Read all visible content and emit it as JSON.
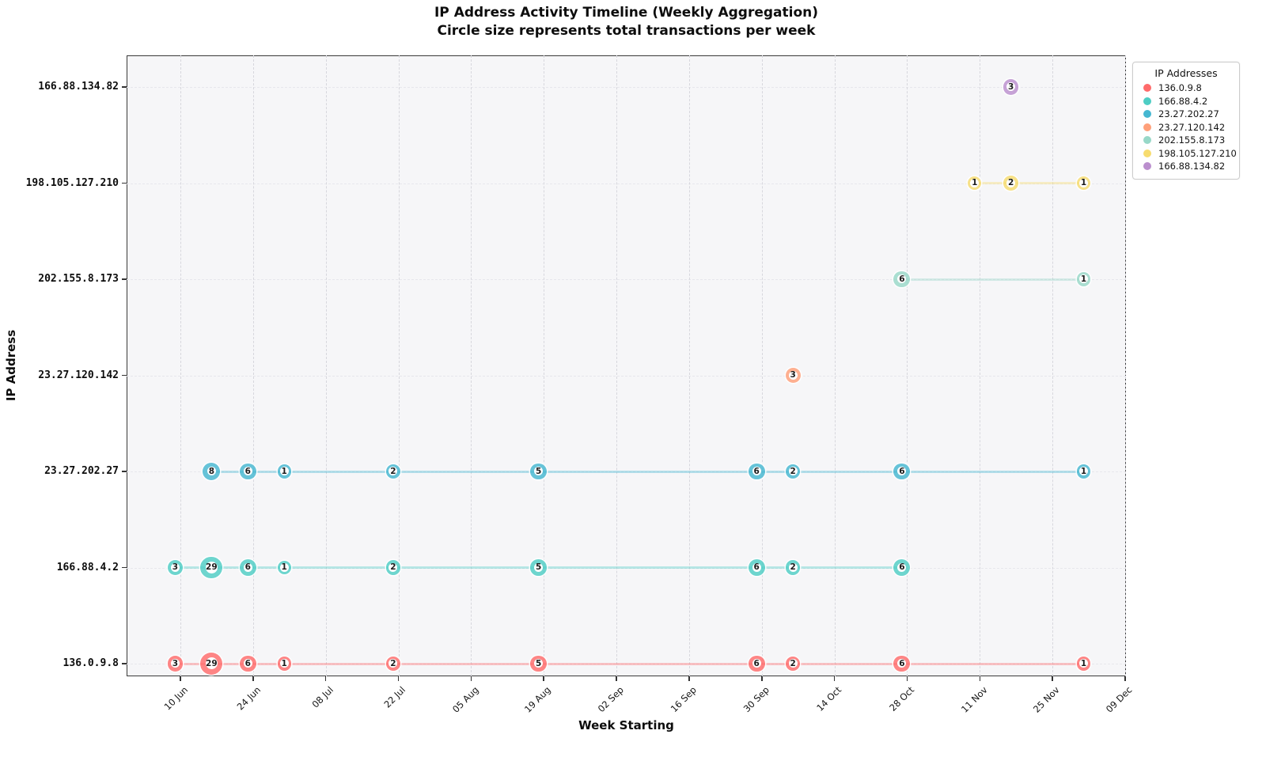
{
  "figure": {
    "title_line1": "IP Address Activity Timeline (Weekly Aggregation)",
    "title_line2": "Circle size represents total transactions per week",
    "xlabel": "Week Starting",
    "ylabel": "IP Address"
  },
  "legend": {
    "title": "IP Addresses",
    "entries": [
      {
        "label": "136.0.9.8",
        "color": "#FF6B6B"
      },
      {
        "label": "166.88.4.2",
        "color": "#4ECDC4"
      },
      {
        "label": "23.27.202.27",
        "color": "#45B7D1"
      },
      {
        "label": "23.27.120.142",
        "color": "#FFA07A"
      },
      {
        "label": "202.155.8.173",
        "color": "#98D8C8"
      },
      {
        "label": "198.105.127.210",
        "color": "#F7DC6F"
      },
      {
        "label": "166.88.134.82",
        "color": "#BB8FCE"
      }
    ]
  },
  "chart_data": {
    "type": "scatter",
    "title": "IP Address Activity Timeline (Weekly Aggregation)",
    "subtitle": "Circle size represents total transactions per week",
    "xlabel": "Week Starting",
    "ylabel": "IP Address",
    "x_tick_labels": [
      "10 Jun",
      "24 Jun",
      "08 Jul",
      "22 Jul",
      "05 Aug",
      "19 Aug",
      "02 Sep",
      "16 Sep",
      "30 Sep",
      "14 Oct",
      "28 Oct",
      "11 Nov",
      "25 Nov",
      "09 Dec"
    ],
    "x_tick_interval_days": 14,
    "y_categories_bottom_to_top": [
      "136.0.9.8",
      "166.88.4.2",
      "23.27.202.27",
      "23.27.120.142",
      "202.155.8.173",
      "198.105.127.210",
      "166.88.134.82"
    ],
    "grid": "dashed",
    "legend_position": "outside upper right",
    "bubble_value_meaning": "total transactions per week",
    "series": [
      {
        "name": "136.0.9.8",
        "color": "#FF6B6B",
        "row": 0,
        "points": [
          {
            "week": "09 Jun",
            "day": -1,
            "value": 3
          },
          {
            "week": "16 Jun",
            "day": 6,
            "value": 29
          },
          {
            "week": "23 Jun",
            "day": 13,
            "value": 6
          },
          {
            "week": "30 Jun",
            "day": 20,
            "value": 1
          },
          {
            "week": "21 Jul",
            "day": 41,
            "value": 2
          },
          {
            "week": "18 Aug",
            "day": 69,
            "value": 5
          },
          {
            "week": "29 Sep",
            "day": 111,
            "value": 6
          },
          {
            "week": "06 Oct",
            "day": 118,
            "value": 2
          },
          {
            "week": "27 Oct",
            "day": 139,
            "value": 6
          },
          {
            "week": "01 Dec",
            "day": 174,
            "value": 1
          }
        ]
      },
      {
        "name": "166.88.4.2",
        "color": "#4ECDC4",
        "row": 1,
        "points": [
          {
            "week": "09 Jun",
            "day": -1,
            "value": 3
          },
          {
            "week": "16 Jun",
            "day": 6,
            "value": 29
          },
          {
            "week": "23 Jun",
            "day": 13,
            "value": 6
          },
          {
            "week": "30 Jun",
            "day": 20,
            "value": 1
          },
          {
            "week": "21 Jul",
            "day": 41,
            "value": 2
          },
          {
            "week": "18 Aug",
            "day": 69,
            "value": 5
          },
          {
            "week": "29 Sep",
            "day": 111,
            "value": 6
          },
          {
            "week": "06 Oct",
            "day": 118,
            "value": 2
          },
          {
            "week": "27 Oct",
            "day": 139,
            "value": 6
          }
        ]
      },
      {
        "name": "23.27.202.27",
        "color": "#45B7D1",
        "row": 2,
        "points": [
          {
            "week": "16 Jun",
            "day": 6,
            "value": 8
          },
          {
            "week": "23 Jun",
            "day": 13,
            "value": 6
          },
          {
            "week": "30 Jun",
            "day": 20,
            "value": 1
          },
          {
            "week": "21 Jul",
            "day": 41,
            "value": 2
          },
          {
            "week": "18 Aug",
            "day": 69,
            "value": 5
          },
          {
            "week": "29 Sep",
            "day": 111,
            "value": 6
          },
          {
            "week": "06 Oct",
            "day": 118,
            "value": 2
          },
          {
            "week": "27 Oct",
            "day": 139,
            "value": 6
          },
          {
            "week": "01 Dec",
            "day": 174,
            "value": 1
          }
        ]
      },
      {
        "name": "23.27.120.142",
        "color": "#FFA07A",
        "row": 3,
        "points": [
          {
            "week": "06 Oct",
            "day": 118,
            "value": 3
          }
        ]
      },
      {
        "name": "202.155.8.173",
        "color": "#98D8C8",
        "row": 4,
        "points": [
          {
            "week": "27 Oct",
            "day": 139,
            "value": 6
          },
          {
            "week": "01 Dec",
            "day": 174,
            "value": 1
          }
        ]
      },
      {
        "name": "198.105.127.210",
        "color": "#F7DC6F",
        "row": 5,
        "points": [
          {
            "week": "10 Nov",
            "day": 153,
            "value": 1
          },
          {
            "week": "17 Nov",
            "day": 160,
            "value": 2
          },
          {
            "week": "01 Dec",
            "day": 174,
            "value": 1
          }
        ]
      },
      {
        "name": "166.88.134.82",
        "color": "#BB8FCE",
        "row": 6,
        "points": [
          {
            "week": "17 Nov",
            "day": 160,
            "value": 3
          }
        ]
      }
    ]
  }
}
